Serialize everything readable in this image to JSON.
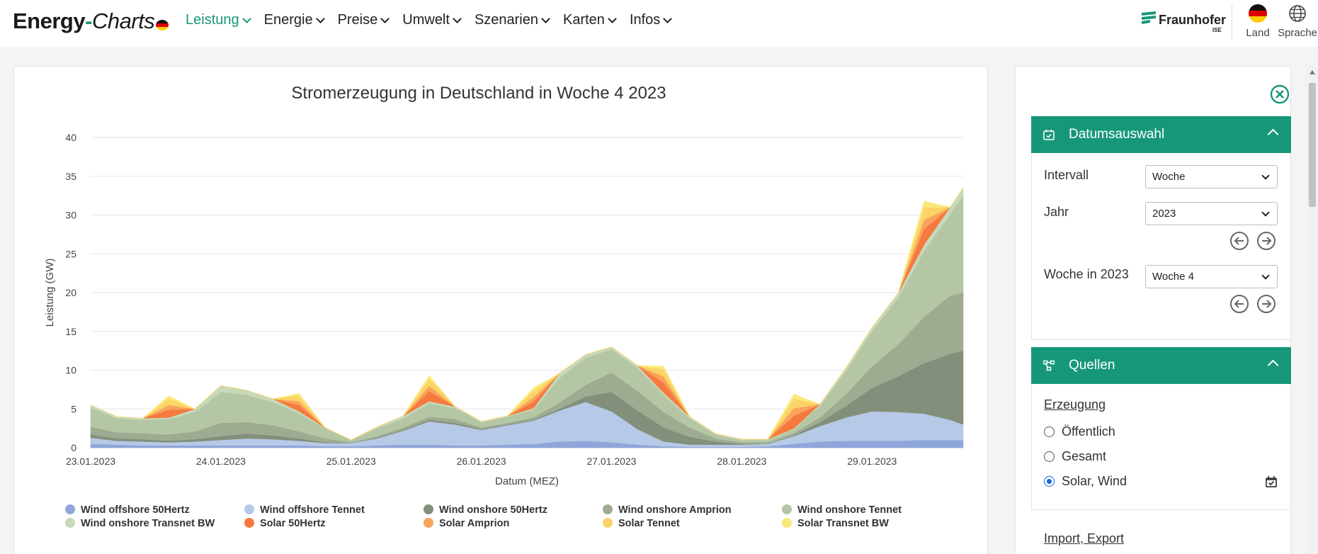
{
  "header": {
    "brand_part1": "Energy",
    "brand_dash": "-",
    "brand_part2": "Charts",
    "nav": [
      {
        "label": "Leistung",
        "active": true
      },
      {
        "label": "Energie"
      },
      {
        "label": "Preise"
      },
      {
        "label": "Umwelt"
      },
      {
        "label": "Szenarien"
      },
      {
        "label": "Karten"
      },
      {
        "label": "Infos"
      }
    ],
    "partner_name": "Fraunhofer",
    "partner_sub": "ISE",
    "country_label": "Land",
    "language_label": "Sprache",
    "accent_color": "#17977a"
  },
  "chart_data": {
    "type": "area",
    "stacked": true,
    "title": "Stromerzeugung in Deutschland in Woche 4 2023",
    "xlabel": "Datum (MEZ)",
    "ylabel": "Leistung (GW)",
    "ylim": [
      0,
      40
    ],
    "yticks": [
      0,
      5,
      10,
      15,
      20,
      25,
      30,
      35,
      40
    ],
    "xlim_days": [
      0,
      6.7
    ],
    "xticks": [
      {
        "label": "23.01.2023",
        "day": 0
      },
      {
        "label": "24.01.2023",
        "day": 1
      },
      {
        "label": "25.01.2023",
        "day": 2
      },
      {
        "label": "26.01.2023",
        "day": 3
      },
      {
        "label": "27.01.2023",
        "day": 4
      },
      {
        "label": "28.01.2023",
        "day": 5
      },
      {
        "label": "29.01.2023",
        "day": 6
      }
    ],
    "x_unit": "days since 23.01.2023 00:00",
    "x": [
      0,
      0.2,
      0.4,
      0.6,
      0.8,
      1.0,
      1.2,
      1.4,
      1.6,
      1.8,
      2.0,
      2.2,
      2.4,
      2.6,
      2.8,
      3.0,
      3.2,
      3.4,
      3.6,
      3.8,
      4.0,
      4.2,
      4.4,
      4.6,
      4.8,
      5.0,
      5.2,
      5.4,
      5.6,
      5.8,
      6.0,
      6.2,
      6.4,
      6.6,
      6.7
    ],
    "series": [
      {
        "name": "Wind offshore 50Hertz",
        "color": "#8fa6da",
        "values": [
          0.5,
          0.4,
          0.3,
          0.3,
          0.3,
          0.3,
          0.3,
          0.3,
          0.3,
          0.2,
          0.2,
          0.3,
          0.4,
          0.4,
          0.3,
          0.3,
          0.4,
          0.5,
          0.8,
          0.9,
          0.7,
          0.4,
          0.2,
          0.1,
          0.1,
          0.1,
          0.2,
          0.5,
          0.8,
          0.9,
          0.9,
          0.9,
          1.0,
          1.0,
          1.0
        ]
      },
      {
        "name": "Wind offshore Tennet",
        "color": "#b6c9e6",
        "values": [
          0.8,
          0.5,
          0.5,
          0.4,
          0.5,
          0.7,
          0.9,
          0.8,
          0.6,
          0.4,
          0.4,
          0.9,
          1.8,
          3.0,
          2.7,
          2.0,
          2.5,
          3.0,
          4.0,
          5.0,
          4.0,
          2.0,
          0.6,
          0.3,
          0.3,
          0.3,
          0.3,
          1.0,
          2.0,
          3.0,
          3.8,
          3.7,
          3.4,
          2.6,
          2.0
        ]
      },
      {
        "name": "Wind onshore 50Hertz",
        "color": "#838f7a",
        "values": [
          0.4,
          0.3,
          0.3,
          0.2,
          0.3,
          0.5,
          0.6,
          0.5,
          0.3,
          0.1,
          0.0,
          0.1,
          0.1,
          0.2,
          0.2,
          0.1,
          0.1,
          0.1,
          0.2,
          0.7,
          2.5,
          2.4,
          1.8,
          1.0,
          0.4,
          0.1,
          0.0,
          0.1,
          0.5,
          1.5,
          3.0,
          4.6,
          6.5,
          8.5,
          9.5
        ]
      },
      {
        "name": "Wind onshore Amprion",
        "color": "#9eab91",
        "values": [
          1.0,
          0.8,
          0.8,
          0.8,
          1.0,
          1.7,
          1.5,
          1.3,
          0.9,
          0.5,
          0.1,
          0.2,
          0.3,
          0.4,
          0.5,
          0.2,
          0.2,
          0.3,
          0.8,
          1.5,
          2.5,
          2.5,
          2.0,
          1.2,
          0.4,
          0.2,
          0.2,
          0.3,
          0.6,
          1.5,
          2.8,
          4.1,
          6.0,
          7.5,
          7.5
        ]
      },
      {
        "name": "Wind onshore Tennet",
        "color": "#b5c6a5",
        "values": [
          2.5,
          1.8,
          1.7,
          2.0,
          2.5,
          4.0,
          3.5,
          3.0,
          2.3,
          1.3,
          0.3,
          1.0,
          1.2,
          1.7,
          1.4,
          0.7,
          0.8,
          1.0,
          3.2,
          3.5,
          3.0,
          3.0,
          2.2,
          1.2,
          0.5,
          0.3,
          0.3,
          0.5,
          1.5,
          3.0,
          4.5,
          6.0,
          8.5,
          10.5,
          12.5
        ]
      },
      {
        "name": "Wind onshore Transnet BW",
        "color": "#c6d9b9",
        "values": [
          0.3,
          0.2,
          0.2,
          0.2,
          0.4,
          0.8,
          0.6,
          0.4,
          0.3,
          0.1,
          0.0,
          0.2,
          0.3,
          0.3,
          0.2,
          0.1,
          0.1,
          0.2,
          0.6,
          0.4,
          0.3,
          0.3,
          0.3,
          0.2,
          0.1,
          0.1,
          0.1,
          0.1,
          0.2,
          0.4,
          0.5,
          0.6,
          0.8,
          0.9,
          1.0
        ]
      },
      {
        "name": "Solar 50Hertz",
        "color": "#f6793f",
        "values": [
          0,
          0,
          0,
          1.0,
          0,
          0,
          0,
          0,
          0.8,
          0,
          0,
          0,
          0,
          1.3,
          0,
          0,
          0,
          0.8,
          0,
          0,
          0,
          0,
          1.3,
          0,
          0,
          0,
          0,
          1.6,
          0,
          0,
          0,
          0,
          2.0,
          0,
          0
        ]
      },
      {
        "name": "Solar Amprion",
        "color": "#f9a35c",
        "values": [
          0,
          0,
          0,
          0.6,
          0,
          0,
          0,
          0,
          0.5,
          0,
          0,
          0,
          0,
          0.7,
          0,
          0,
          0,
          0.6,
          0,
          0,
          0,
          0,
          0.8,
          0,
          0,
          0,
          0,
          1.0,
          0,
          0,
          0,
          0,
          1.2,
          0,
          0
        ]
      },
      {
        "name": "Solar Tennet",
        "color": "#fbd366",
        "values": [
          0,
          0,
          0,
          0.8,
          0,
          0,
          0,
          0,
          0.7,
          0,
          0,
          0,
          0,
          0.9,
          0,
          0,
          0,
          0.8,
          0,
          0,
          0,
          0,
          0.9,
          0,
          0,
          0,
          0,
          1.2,
          0,
          0,
          0,
          0,
          1.6,
          0,
          0
        ]
      },
      {
        "name": "Solar Transnet BW",
        "color": "#fbe87b",
        "values": [
          0,
          0,
          0,
          0.4,
          0,
          0,
          0,
          0,
          0.3,
          0,
          0,
          0,
          0,
          0.4,
          0,
          0,
          0,
          0.4,
          0,
          0,
          0,
          0,
          0.4,
          0,
          0,
          0,
          0,
          0.6,
          0,
          0,
          0,
          0,
          0.8,
          0,
          0
        ]
      }
    ],
    "legend_position": "bottom",
    "grid": true
  },
  "panel": {
    "datum": {
      "title": "Datumsauswahl",
      "intervall_label": "Intervall",
      "intervall_value": "Woche",
      "jahr_label": "Jahr",
      "jahr_value": "2023",
      "woche_label": "Woche in 2023",
      "woche_value": "Woche 4"
    },
    "quellen": {
      "title": "Quellen",
      "erzeugung_label": "Erzeugung",
      "options": [
        "Öffentlich",
        "Gesamt",
        "Solar, Wind"
      ],
      "selected": "Solar, Wind"
    },
    "import_export_label": "Import, Export"
  }
}
